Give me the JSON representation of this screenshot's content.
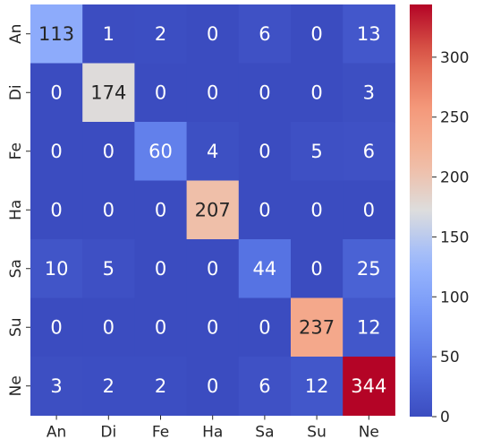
{
  "chart_data": {
    "type": "heatmap",
    "title": "",
    "xlabel": "",
    "ylabel": "",
    "x_categories": [
      "An",
      "Di",
      "Fe",
      "Ha",
      "Sa",
      "Su",
      "Ne"
    ],
    "y_categories": [
      "An",
      "Di",
      "Fe",
      "Ha",
      "Sa",
      "Su",
      "Ne"
    ],
    "values": [
      [
        113,
        1,
        2,
        0,
        6,
        0,
        13
      ],
      [
        0,
        174,
        0,
        0,
        0,
        0,
        3
      ],
      [
        0,
        0,
        60,
        4,
        0,
        5,
        6
      ],
      [
        0,
        0,
        0,
        207,
        0,
        0,
        0
      ],
      [
        10,
        5,
        0,
        0,
        44,
        0,
        25
      ],
      [
        0,
        0,
        0,
        0,
        0,
        237,
        12
      ],
      [
        3,
        2,
        2,
        0,
        6,
        12,
        344
      ]
    ],
    "colormap": "coolwarm",
    "color_range": [
      0,
      344
    ],
    "colorbar_ticks": [
      0,
      50,
      100,
      150,
      200,
      250,
      300
    ],
    "colorbar_tick_labels": [
      "0",
      "50",
      "100",
      "150",
      "200",
      "250",
      "300"
    ],
    "grid": false,
    "colors": {
      "low": "#3b4cc0",
      "mid": "#dddddd",
      "high": "#b40426"
    }
  }
}
